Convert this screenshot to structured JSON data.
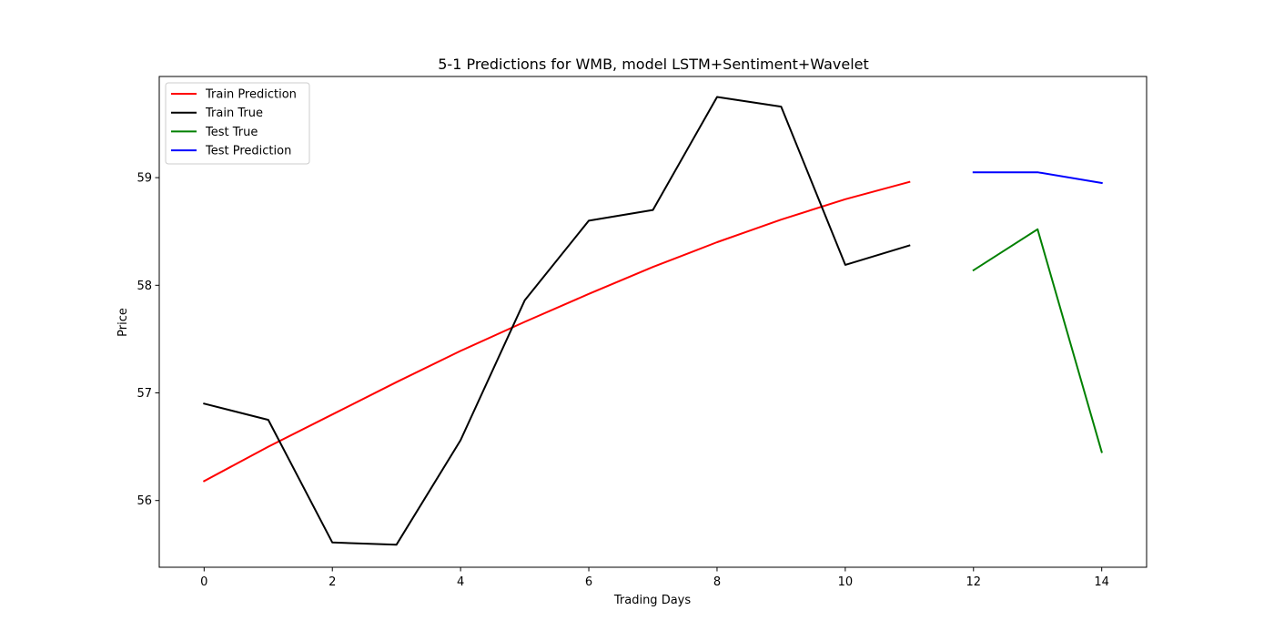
{
  "chart_data": {
    "type": "line",
    "title": "5-1 Predictions for WMB, model LSTM+Sentiment+Wavelet",
    "xlabel": "Trading Days",
    "ylabel": "Price",
    "xlim": [
      -0.7,
      14.7
    ],
    "ylim": [
      55.38,
      59.94
    ],
    "xticks": [
      0,
      2,
      4,
      6,
      8,
      10,
      12,
      14
    ],
    "yticks": [
      56,
      57,
      58,
      59
    ],
    "grid": false,
    "legend_position": "upper left",
    "series": [
      {
        "name": "Train Prediction",
        "color": "#ff0000",
        "x": [
          0,
          1,
          2,
          3,
          4,
          5,
          6,
          7,
          8,
          9,
          10,
          11
        ],
        "y": [
          56.18,
          56.5,
          56.8,
          57.1,
          57.39,
          57.66,
          57.92,
          58.17,
          58.4,
          58.61,
          58.8,
          58.96
        ]
      },
      {
        "name": "Train True",
        "color": "#000000",
        "x": [
          0,
          1,
          2,
          3,
          4,
          5,
          6,
          7,
          8,
          9,
          10,
          11
        ],
        "y": [
          56.9,
          56.75,
          55.61,
          55.59,
          56.56,
          57.86,
          58.6,
          58.7,
          59.75,
          59.66,
          58.19,
          58.37
        ]
      },
      {
        "name": "Test True",
        "color": "#008000",
        "x": [
          12,
          13,
          14
        ],
        "y": [
          58.14,
          58.52,
          56.45
        ]
      },
      {
        "name": "Test Prediction",
        "color": "#0000ff",
        "x": [
          12,
          13,
          14
        ],
        "y": [
          59.05,
          59.05,
          58.95
        ]
      }
    ]
  }
}
